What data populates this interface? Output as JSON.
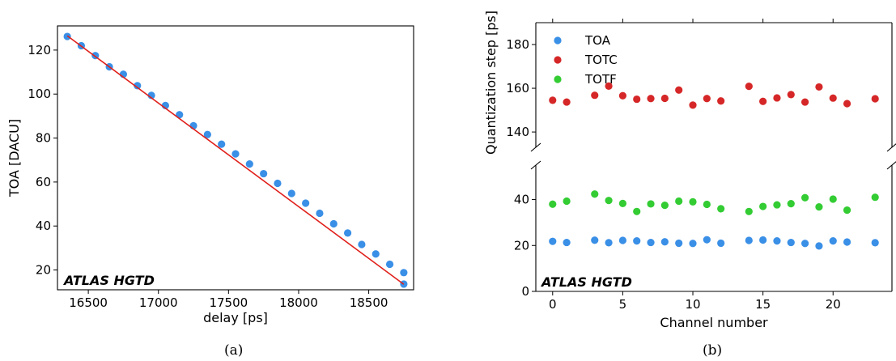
{
  "captions": [
    "(a)",
    "(b)"
  ],
  "chart_data": [
    {
      "type": "scatter",
      "title": "",
      "xlabel": "delay [ps]",
      "ylabel": "TOA [DACU]",
      "xlim": [
        16280,
        18820
      ],
      "ylim": [
        11,
        131
      ],
      "xticks": [
        16500,
        17000,
        17500,
        18000,
        18500
      ],
      "yticks": [
        20,
        40,
        60,
        80,
        100,
        120
      ],
      "grid": false,
      "annotation": "ATLAS HGTD",
      "series": [
        {
          "kind": "points",
          "color": "#3a8fe6",
          "x": [
            16350,
            16450,
            16550,
            16650,
            16750,
            16850,
            16950,
            17050,
            17150,
            17250,
            17350,
            17450,
            17550,
            17650,
            17750,
            17850,
            17950,
            18050,
            18150,
            18250,
            18350,
            18450,
            18550,
            18650,
            18750
          ],
          "y": [
            126.2,
            122.0,
            117.5,
            112.4,
            109.0,
            103.8,
            99.4,
            94.8,
            90.6,
            85.6,
            81.6,
            77.2,
            72.8,
            68.2,
            63.8,
            59.4,
            54.8,
            50.4,
            45.8,
            41.0,
            36.8,
            31.6,
            27.3,
            22.6,
            18.8
          ]
        },
        {
          "kind": "fit-line",
          "color": "#e0201b",
          "x": [
            16350,
            18750
          ],
          "y": [
            126.5,
            13.5
          ]
        }
      ],
      "extra_points": [
        {
          "x": 18750,
          "y": 13.6
        }
      ]
    },
    {
      "type": "scatter",
      "title": "",
      "xlabel": "Channel number",
      "ylabel": "Quantization step [ps]",
      "xlim": [
        -1.2,
        24.2
      ],
      "broken_axis": true,
      "ylim_upper": [
        133,
        190
      ],
      "ylim_lower": [
        0,
        55
      ],
      "yticks_upper": [
        140,
        160,
        180
      ],
      "yticks_lower": [
        0,
        20,
        40
      ],
      "xticks": [
        0,
        5,
        10,
        15,
        20
      ],
      "grid": false,
      "legend_position": "upper-left",
      "annotation": "ATLAS HGTD",
      "series": [
        {
          "name": "TOA",
          "color": "#3a8fe6",
          "x": [
            0,
            1,
            3,
            4,
            5,
            6,
            7,
            8,
            9,
            10,
            11,
            12,
            14,
            15,
            16,
            17,
            18,
            19,
            20,
            21,
            23
          ],
          "y": [
            21.8,
            21.3,
            22.3,
            21.2,
            22.2,
            22.0,
            21.3,
            21.6,
            21.0,
            20.9,
            22.5,
            21.0,
            22.2,
            22.4,
            22.0,
            21.3,
            20.9,
            19.8,
            22.0,
            21.5,
            21.2
          ]
        },
        {
          "name": "TOTC",
          "color": "#d62728",
          "x": [
            0,
            1,
            3,
            4,
            5,
            6,
            7,
            8,
            9,
            10,
            11,
            12,
            14,
            15,
            16,
            17,
            18,
            19,
            20,
            21,
            23
          ],
          "y": [
            154.5,
            153.7,
            156.8,
            161.0,
            156.6,
            155.0,
            155.3,
            155.4,
            159.2,
            152.3,
            155.3,
            154.2,
            160.9,
            154.0,
            155.6,
            157.1,
            153.7,
            160.6,
            155.5,
            153.0,
            155.2
          ]
        },
        {
          "name": "TOTF",
          "color": "#33cc33",
          "x": [
            0,
            1,
            3,
            4,
            5,
            6,
            7,
            8,
            9,
            10,
            11,
            12,
            14,
            15,
            16,
            17,
            18,
            19,
            20,
            21,
            23
          ],
          "y": [
            38.0,
            39.3,
            42.4,
            39.6,
            38.3,
            34.8,
            38.1,
            37.5,
            39.3,
            39.0,
            37.9,
            36.0,
            34.8,
            37.0,
            37.7,
            38.2,
            40.8,
            36.8,
            40.2,
            35.4,
            41.0
          ]
        }
      ]
    }
  ]
}
